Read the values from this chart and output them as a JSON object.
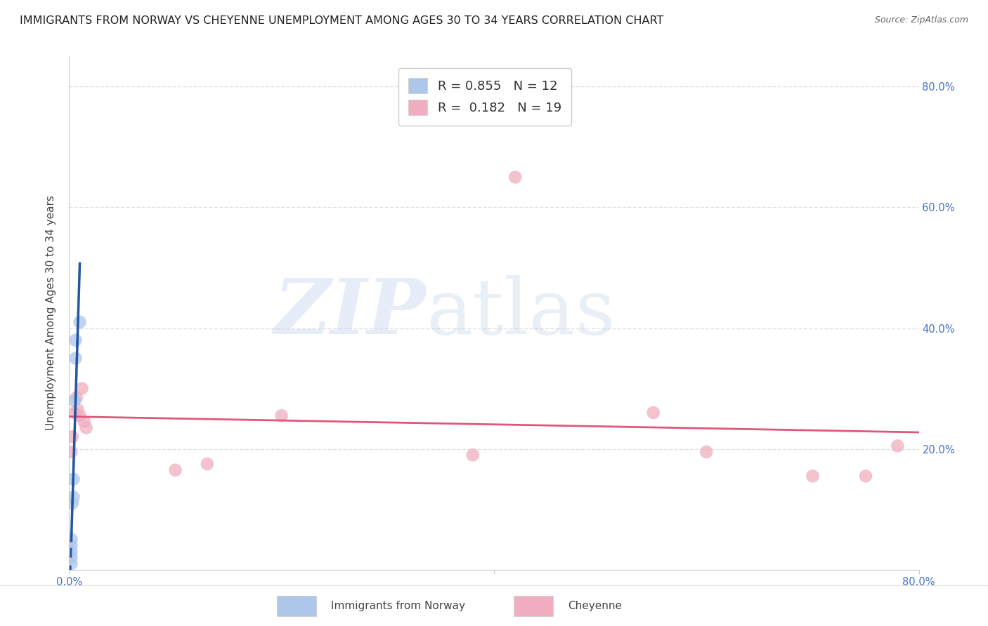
{
  "title": "IMMIGRANTS FROM NORWAY VS CHEYENNE UNEMPLOYMENT AMONG AGES 30 TO 34 YEARS CORRELATION CHART",
  "source": "Source: ZipAtlas.com",
  "tick_color": "#4472c4",
  "ylabel": "Unemployment Among Ages 30 to 34 years",
  "xlim": [
    0.0,
    0.8
  ],
  "ylim": [
    0.0,
    0.85
  ],
  "background_color": "#ffffff",
  "norway_color": "#adc6ea",
  "norway_edge_color": "#adc6ea",
  "norway_line_color": "#2255a0",
  "cheyenne_color": "#f0aec0",
  "cheyenne_edge_color": "#f0aec0",
  "cheyenne_line_color": "#e05878",
  "norway_R": 0.855,
  "norway_N": 12,
  "cheyenne_R": 0.182,
  "cheyenne_N": 19,
  "norway_x": [
    0.002,
    0.002,
    0.002,
    0.002,
    0.002,
    0.003,
    0.004,
    0.004,
    0.005,
    0.006,
    0.006,
    0.01
  ],
  "norway_y": [
    0.01,
    0.02,
    0.03,
    0.04,
    0.05,
    0.11,
    0.12,
    0.15,
    0.28,
    0.35,
    0.38,
    0.41
  ],
  "cheyenne_x": [
    0.002,
    0.003,
    0.005,
    0.007,
    0.008,
    0.01,
    0.012,
    0.014,
    0.016,
    0.1,
    0.13,
    0.2,
    0.38,
    0.42,
    0.55,
    0.6,
    0.7,
    0.75,
    0.78
  ],
  "cheyenne_y": [
    0.195,
    0.22,
    0.26,
    0.285,
    0.265,
    0.255,
    0.3,
    0.245,
    0.235,
    0.165,
    0.175,
    0.255,
    0.19,
    0.65,
    0.26,
    0.195,
    0.155,
    0.155,
    0.205
  ],
  "grid_color": "#e0e0e0",
  "grid_linestyle": "--",
  "title_fontsize": 11.5,
  "axis_label_fontsize": 11,
  "tick_fontsize": 10.5,
  "legend_fontsize": 13,
  "scatter_size": 180,
  "scatter_alpha": 0.75,
  "norway_line_slope": 28.0,
  "norway_line_intercept": 0.28,
  "cheyenne_line_slope": 0.12,
  "cheyenne_line_intercept": 0.205
}
